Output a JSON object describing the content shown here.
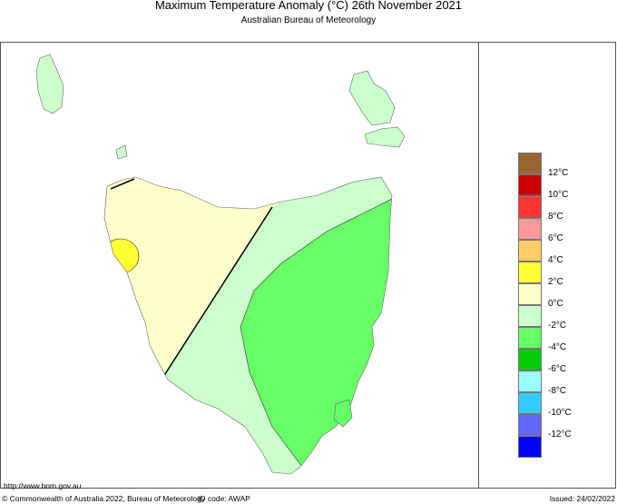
{
  "header": {
    "title": "Maximum Temperature Anomaly (°C)  26th November 2021",
    "subtitle": "Australian Bureau of Meteorology"
  },
  "legend": {
    "colors": [
      "#996633",
      "#cc0000",
      "#ff3333",
      "#ff9999",
      "#ffcc66",
      "#ffff33",
      "#ffffcc",
      "#ccffcc",
      "#66ff66",
      "#00cc00",
      "#99ffff",
      "#33ccff",
      "#6666ff",
      "#0000ff"
    ],
    "labels": [
      "12°C",
      "10°C",
      "8°C",
      "6°C",
      "4°C",
      "2°C",
      "0°C",
      "-2°C",
      "-4°C",
      "-6°C",
      "-8°C",
      "-10°C",
      "-12°C"
    ]
  },
  "map": {
    "region": "Tasmania",
    "zones": [
      {
        "range": "2 to 4",
        "color": "#ffff33"
      },
      {
        "range": "0 to 2",
        "color": "#ffffcc"
      },
      {
        "range": "-2 to 0",
        "color": "#ccffcc"
      },
      {
        "range": "-4 to -2",
        "color": "#66ff66"
      }
    ]
  },
  "footer": {
    "url": "http://www.bom.gov.au",
    "copyright": "© Commonwealth of Australia 2022, Bureau of Meteorology",
    "id_code": "ID code: AWAP",
    "issued": "Issued: 24/02/2022"
  }
}
